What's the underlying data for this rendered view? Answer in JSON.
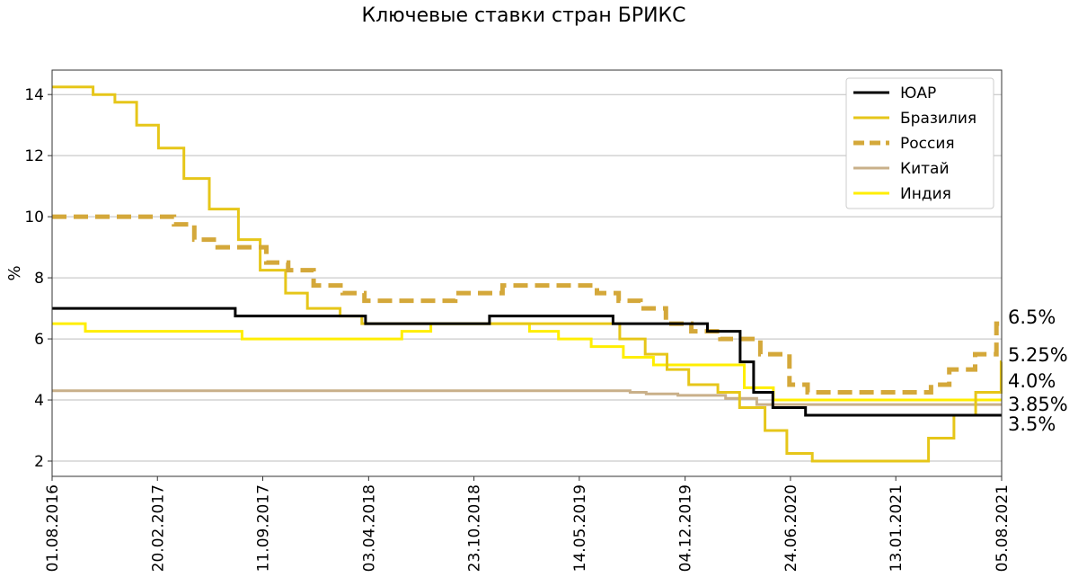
{
  "chart_data": {
    "type": "line",
    "title": "Ключевые ставки стран БРИКС",
    "ylabel": "%",
    "xlabel": "",
    "xlim": [
      "2016-08-01",
      "2021-08-05"
    ],
    "ylim": [
      1.5,
      14.8
    ],
    "yticks": [
      2,
      4,
      6,
      8,
      10,
      12,
      14
    ],
    "xticks": [
      "01.08.2016",
      "20.02.2017",
      "11.09.2017",
      "03.04.2018",
      "23.10.2018",
      "14.05.2019",
      "04.12.2019",
      "24.06.2020",
      "13.01.2021",
      "05.08.2021"
    ],
    "grid": "horizontal",
    "legend": "top-right",
    "series": [
      {
        "name": "ЮАР",
        "color": "#000000",
        "dash": false,
        "points": [
          [
            "2016-08-01",
            7.0
          ],
          [
            "2017-07-20",
            6.75
          ],
          [
            "2018-03-28",
            6.5
          ],
          [
            "2018-11-22",
            6.75
          ],
          [
            "2019-07-18",
            6.5
          ],
          [
            "2020-01-16",
            6.25
          ],
          [
            "2020-03-19",
            5.25
          ],
          [
            "2020-04-14",
            4.25
          ],
          [
            "2020-05-21",
            3.75
          ],
          [
            "2020-07-23",
            3.5
          ],
          [
            "2021-08-05",
            3.5
          ]
        ]
      },
      {
        "name": "Бразилия",
        "color": "#e6c619",
        "dash": false,
        "points": [
          [
            "2016-08-01",
            14.25
          ],
          [
            "2016-10-19",
            14.0
          ],
          [
            "2016-11-30",
            13.75
          ],
          [
            "2017-01-11",
            13.0
          ],
          [
            "2017-02-22",
            12.25
          ],
          [
            "2017-04-12",
            11.25
          ],
          [
            "2017-05-31",
            10.25
          ],
          [
            "2017-07-26",
            9.25
          ],
          [
            "2017-09-06",
            8.25
          ],
          [
            "2017-10-25",
            7.5
          ],
          [
            "2017-12-06",
            7.0
          ],
          [
            "2018-02-07",
            6.75
          ],
          [
            "2018-03-21",
            6.5
          ],
          [
            "2019-07-31",
            6.0
          ],
          [
            "2019-09-18",
            5.5
          ],
          [
            "2019-10-30",
            5.0
          ],
          [
            "2019-12-11",
            4.5
          ],
          [
            "2020-02-05",
            4.25
          ],
          [
            "2020-03-18",
            3.75
          ],
          [
            "2020-05-06",
            3.0
          ],
          [
            "2020-06-17",
            2.25
          ],
          [
            "2020-08-05",
            2.0
          ],
          [
            "2021-03-17",
            2.75
          ],
          [
            "2021-05-05",
            3.5
          ],
          [
            "2021-06-16",
            4.25
          ],
          [
            "2021-08-04",
            5.25
          ],
          [
            "2021-08-05",
            5.25
          ]
        ]
      },
      {
        "name": "Россия",
        "color": "#d4a83a",
        "dash": true,
        "points": [
          [
            "2016-08-01",
            10.0
          ],
          [
            "2016-09-16",
            10.0
          ],
          [
            "2017-03-24",
            9.75
          ],
          [
            "2017-05-02",
            9.25
          ],
          [
            "2017-06-16",
            9.0
          ],
          [
            "2017-09-18",
            8.5
          ],
          [
            "2017-10-30",
            8.25
          ],
          [
            "2017-12-18",
            7.75
          ],
          [
            "2018-02-12",
            7.5
          ],
          [
            "2018-03-26",
            7.25
          ],
          [
            "2018-09-17",
            7.5
          ],
          [
            "2018-12-17",
            7.75
          ],
          [
            "2019-06-17",
            7.5
          ],
          [
            "2019-07-29",
            7.25
          ],
          [
            "2019-09-09",
            7.0
          ],
          [
            "2019-10-28",
            6.5
          ],
          [
            "2019-12-16",
            6.25
          ],
          [
            "2020-02-10",
            6.0
          ],
          [
            "2020-04-27",
            5.5
          ],
          [
            "2020-06-22",
            4.5
          ],
          [
            "2020-07-27",
            4.25
          ],
          [
            "2021-03-22",
            4.5
          ],
          [
            "2021-04-26",
            5.0
          ],
          [
            "2021-06-15",
            5.5
          ],
          [
            "2021-07-26",
            6.5
          ],
          [
            "2021-08-05",
            6.5
          ]
        ]
      },
      {
        "name": "Китай",
        "color": "#c9b08a",
        "dash": false,
        "points": [
          [
            "2016-08-01",
            4.3
          ],
          [
            "2019-08-20",
            4.25
          ],
          [
            "2019-09-20",
            4.2
          ],
          [
            "2019-11-20",
            4.15
          ],
          [
            "2020-02-20",
            4.05
          ],
          [
            "2020-04-20",
            3.85
          ],
          [
            "2021-08-05",
            3.85
          ]
        ]
      },
      {
        "name": "Индия",
        "color": "#ffee00",
        "dash": false,
        "points": [
          [
            "2016-08-01",
            6.5
          ],
          [
            "2016-10-04",
            6.25
          ],
          [
            "2017-08-02",
            6.0
          ],
          [
            "2018-06-06",
            6.25
          ],
          [
            "2018-08-01",
            6.5
          ],
          [
            "2019-02-07",
            6.25
          ],
          [
            "2019-04-04",
            6.0
          ],
          [
            "2019-06-06",
            5.75
          ],
          [
            "2019-08-07",
            5.4
          ],
          [
            "2019-10-04",
            5.15
          ],
          [
            "2020-03-27",
            4.4
          ],
          [
            "2020-05-22",
            4.0
          ],
          [
            "2021-08-05",
            4.0
          ]
        ]
      }
    ],
    "end_labels": [
      "6.5%",
      "5.25%",
      "4.0%",
      "3.85%",
      "3.5%"
    ]
  }
}
